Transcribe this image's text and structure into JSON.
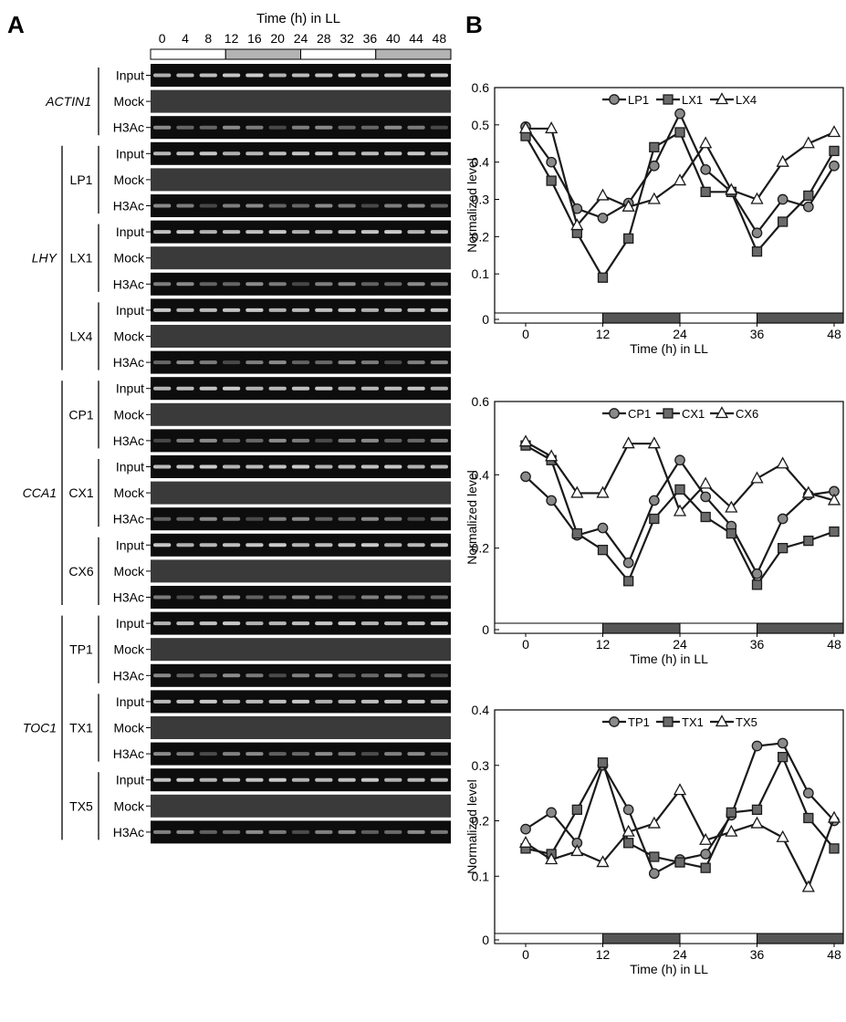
{
  "panel_a": {
    "letter": "A",
    "time_header": "Time (h) in LL",
    "time_labels": [
      "0",
      "4",
      "8",
      "12",
      "16",
      "20",
      "24",
      "28",
      "32",
      "36",
      "40",
      "44",
      "48"
    ],
    "groups": [
      {
        "gene": "ACTIN1",
        "amplicons": [
          {
            "name": "",
            "rows": [
              "Input",
              "Mock",
              "H3Ac"
            ]
          }
        ]
      },
      {
        "gene": "LHY",
        "amplicons": [
          {
            "name": "LP1",
            "rows": [
              "Input",
              "Mock",
              "H3Ac"
            ]
          },
          {
            "name": "LX1",
            "rows": [
              "Input",
              "Mock",
              "H3Ac"
            ]
          },
          {
            "name": "LX4",
            "rows": [
              "Input",
              "Mock",
              "H3Ac"
            ]
          }
        ]
      },
      {
        "gene": "CCA1",
        "amplicons": [
          {
            "name": "CP1",
            "rows": [
              "Input",
              "Mock",
              "H3Ac"
            ]
          },
          {
            "name": "CX1",
            "rows": [
              "Input",
              "Mock",
              "H3Ac"
            ]
          },
          {
            "name": "CX6",
            "rows": [
              "Input",
              "Mock",
              "H3Ac"
            ]
          }
        ]
      },
      {
        "gene": "TOC1",
        "amplicons": [
          {
            "name": "TP1",
            "rows": [
              "Input",
              "Mock",
              "H3Ac"
            ]
          },
          {
            "name": "TX1",
            "rows": [
              "Input",
              "Mock",
              "H3Ac"
            ]
          },
          {
            "name": "TX5",
            "rows": [
              "Input",
              "Mock",
              "H3Ac"
            ]
          }
        ]
      }
    ]
  },
  "panel_b": {
    "letter": "B"
  },
  "chart_data": [
    {
      "type": "line",
      "xlabel": "Time (h) in LL",
      "ylabel": "Normalized level",
      "xlim": [
        0,
        48
      ],
      "ylim": [
        0,
        0.6
      ],
      "xticks": [
        0,
        12,
        24,
        36,
        48
      ],
      "yticks": [
        0,
        0.1,
        0.2,
        0.3,
        0.4,
        0.5,
        0.6
      ],
      "legend": "top",
      "x": [
        0,
        4,
        8,
        12,
        16,
        20,
        24,
        28,
        32,
        36,
        40,
        44,
        48
      ],
      "series": [
        {
          "name": "LP1",
          "marker": "circle",
          "values": [
            0.495,
            0.4,
            0.275,
            0.25,
            0.29,
            0.39,
            0.53,
            0.38,
            0.32,
            0.21,
            0.3,
            0.28,
            0.39
          ]
        },
        {
          "name": "LX1",
          "marker": "square",
          "values": [
            0.47,
            0.35,
            0.21,
            0.09,
            0.195,
            0.44,
            0.48,
            0.32,
            0.32,
            0.16,
            0.24,
            0.31,
            0.43
          ]
        },
        {
          "name": "LX4",
          "marker": "triangle",
          "values": [
            0.49,
            0.49,
            0.23,
            0.31,
            0.28,
            0.3,
            0.35,
            0.45,
            0.325,
            0.3,
            0.4,
            0.45,
            0.48
          ]
        }
      ]
    },
    {
      "type": "line",
      "xlabel": "Time (h) in LL",
      "ylabel": "Normalized level",
      "xlim": [
        0,
        48
      ],
      "ylim": [
        0,
        0.6
      ],
      "xticks": [
        0,
        12,
        24,
        36,
        48
      ],
      "yticks": [
        0,
        0.2,
        0.4,
        0.6
      ],
      "legend": "top",
      "x": [
        0,
        4,
        8,
        12,
        16,
        20,
        24,
        28,
        32,
        36,
        40,
        44,
        48
      ],
      "series": [
        {
          "name": "CP1",
          "marker": "circle",
          "values": [
            0.395,
            0.33,
            0.235,
            0.255,
            0.16,
            0.33,
            0.44,
            0.34,
            0.26,
            0.13,
            0.28,
            0.345,
            0.355
          ]
        },
        {
          "name": "CX1",
          "marker": "square",
          "values": [
            0.48,
            0.44,
            0.24,
            0.195,
            0.11,
            0.28,
            0.36,
            0.285,
            0.24,
            0.1,
            0.2,
            0.22,
            0.245
          ]
        },
        {
          "name": "CX6",
          "marker": "triangle",
          "values": [
            0.49,
            0.45,
            0.35,
            0.35,
            0.485,
            0.485,
            0.3,
            0.375,
            0.31,
            0.39,
            0.43,
            0.35,
            0.33
          ]
        }
      ]
    },
    {
      "type": "line",
      "xlabel": "Time (h) in LL",
      "ylabel": "Normalized level",
      "xlim": [
        0,
        48
      ],
      "ylim": [
        0,
        0.4
      ],
      "xticks": [
        0,
        12,
        24,
        36,
        48
      ],
      "yticks": [
        0,
        0.1,
        0.2,
        0.3,
        0.4
      ],
      "legend": "top",
      "x": [
        0,
        4,
        8,
        12,
        16,
        20,
        24,
        28,
        32,
        36,
        40,
        44,
        48
      ],
      "series": [
        {
          "name": "TP1",
          "marker": "circle",
          "values": [
            0.185,
            0.215,
            0.16,
            0.3,
            0.22,
            0.105,
            0.13,
            0.14,
            0.21,
            0.335,
            0.34,
            0.25,
            0.2
          ]
        },
        {
          "name": "TX1",
          "marker": "square",
          "values": [
            0.15,
            0.14,
            0.22,
            0.305,
            0.16,
            0.135,
            0.125,
            0.115,
            0.215,
            0.22,
            0.315,
            0.205,
            0.15
          ]
        },
        {
          "name": "TX5",
          "marker": "triangle",
          "values": [
            0.16,
            0.13,
            0.145,
            0.125,
            0.18,
            0.195,
            0.255,
            0.165,
            0.18,
            0.195,
            0.17,
            0.08,
            0.205
          ]
        }
      ]
    }
  ]
}
